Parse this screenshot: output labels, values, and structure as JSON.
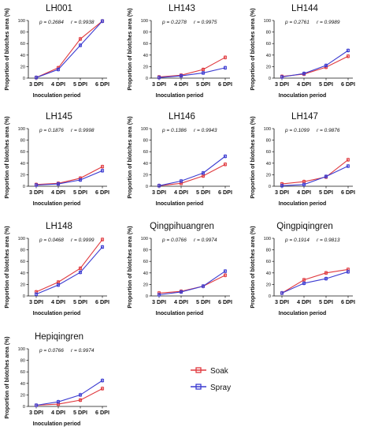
{
  "figure": {
    "legend": {
      "entries": [
        {
          "name": "Soak",
          "color": "#e0393e"
        },
        {
          "name": "Spray",
          "color": "#3b3bd1"
        }
      ]
    }
  },
  "chart_data": [
    {
      "type": "line",
      "title": "LH001",
      "stats": {
        "p": "p = 0.2684",
        "r": "r = 0.9938"
      },
      "categories": [
        "3 DPI",
        "4 DPI",
        "5 DPI",
        "6 DPI"
      ],
      "xlabel": "Inoculation period",
      "ylabel": "Proportion of blotches area (%)",
      "ylim": [
        0,
        100
      ],
      "yticks": [
        0,
        20,
        40,
        60,
        80,
        100
      ],
      "grid": false,
      "series": [
        {
          "name": "Soak",
          "color": "#e0393e",
          "values": [
            1,
            18,
            68,
            99
          ]
        },
        {
          "name": "Spray",
          "color": "#3b3bd1",
          "values": [
            1,
            15,
            57,
            99
          ]
        }
      ]
    },
    {
      "type": "line",
      "title": "LH143",
      "stats": {
        "p": "p = 0.2278",
        "r": "r = 0.9975"
      },
      "categories": [
        "3 DPI",
        "4 DPI",
        "5 DPI",
        "6 DPI"
      ],
      "xlabel": "Inoculation period",
      "ylabel": "Proportion of blotches area (%)",
      "ylim": [
        0,
        100
      ],
      "yticks": [
        0,
        20,
        40,
        60,
        80,
        100
      ],
      "grid": false,
      "series": [
        {
          "name": "Soak",
          "color": "#e0393e",
          "values": [
            2,
            5,
            15,
            36
          ]
        },
        {
          "name": "Spray",
          "color": "#3b3bd1",
          "values": [
            1,
            4,
            9,
            18
          ]
        }
      ]
    },
    {
      "type": "line",
      "title": "LH144",
      "stats": {
        "p": "p = 0.2761",
        "r": "r = 0.9989"
      },
      "categories": [
        "3 DPI",
        "4 DPI",
        "5 DPI",
        "6 DPI"
      ],
      "xlabel": "Inoculation period",
      "ylabel": "Proportion of blotches area (%)",
      "ylim": [
        0,
        100
      ],
      "yticks": [
        0,
        20,
        40,
        60,
        80,
        100
      ],
      "grid": false,
      "series": [
        {
          "name": "Soak",
          "color": "#e0393e",
          "values": [
            3,
            7,
            19,
            38
          ]
        },
        {
          "name": "Spray",
          "color": "#3b3bd1",
          "values": [
            2,
            8,
            22,
            48
          ]
        }
      ]
    },
    {
      "type": "line",
      "title": "LH145",
      "stats": {
        "p": "p = 0.1876",
        "r": "r = 0.9998"
      },
      "categories": [
        "3 DPI",
        "4 DPI",
        "5 DPI",
        "6 DPI"
      ],
      "xlabel": "Inoculation period",
      "ylabel": "Proportion of blotches area (%)",
      "ylim": [
        0,
        100
      ],
      "yticks": [
        0,
        20,
        40,
        60,
        80,
        100
      ],
      "grid": false,
      "series": [
        {
          "name": "Soak",
          "color": "#e0393e",
          "values": [
            3,
            5,
            14,
            34
          ]
        },
        {
          "name": "Spray",
          "color": "#3b3bd1",
          "values": [
            2,
            4,
            11,
            27
          ]
        }
      ]
    },
    {
      "type": "line",
      "title": "LH146",
      "stats": {
        "p": "p = 0.1386",
        "r": "r = 0.9943"
      },
      "categories": [
        "3 DPI",
        "4 DPI",
        "5 DPI",
        "6 DPI"
      ],
      "xlabel": "Inoculation period",
      "ylabel": "Proportion of blotches area (%)",
      "ylim": [
        0,
        100
      ],
      "yticks": [
        0,
        20,
        40,
        60,
        80,
        100
      ],
      "grid": false,
      "series": [
        {
          "name": "Soak",
          "color": "#e0393e",
          "values": [
            1,
            5,
            18,
            38
          ]
        },
        {
          "name": "Spray",
          "color": "#3b3bd1",
          "values": [
            1,
            9,
            23,
            52
          ]
        }
      ]
    },
    {
      "type": "line",
      "title": "LH147",
      "stats": {
        "p": "p = 0.1099",
        "r": "r = 0.9876"
      },
      "categories": [
        "3 DPI",
        "4 DPI",
        "5 DPI",
        "6 DPI"
      ],
      "xlabel": "Inoculation period",
      "ylabel": "Proportion of blotches area (%)",
      "ylim": [
        0,
        100
      ],
      "yticks": [
        0,
        20,
        40,
        60,
        80,
        100
      ],
      "grid": false,
      "series": [
        {
          "name": "Soak",
          "color": "#e0393e",
          "values": [
            4,
            8,
            16,
            46
          ]
        },
        {
          "name": "Spray",
          "color": "#3b3bd1",
          "values": [
            1,
            3,
            17,
            35
          ]
        }
      ]
    },
    {
      "type": "line",
      "title": "LH148",
      "stats": {
        "p": "p = 0.0468",
        "r": "r = 0.9999"
      },
      "categories": [
        "3 DPI",
        "4 DPI",
        "5 DPI",
        "6 DPI"
      ],
      "xlabel": "Inoculation period",
      "ylabel": "Proportion of blotches area (%)",
      "ylim": [
        0,
        100
      ],
      "yticks": [
        0,
        20,
        40,
        60,
        80,
        100
      ],
      "grid": false,
      "series": [
        {
          "name": "Soak",
          "color": "#e0393e",
          "values": [
            7,
            24,
            48,
            98
          ]
        },
        {
          "name": "Spray",
          "color": "#3b3bd1",
          "values": [
            3,
            19,
            41,
            85
          ]
        }
      ]
    },
    {
      "type": "line",
      "title": "Qingpihuangren",
      "stats": {
        "p": "p = 0.0766",
        "r": "r = 0.9974"
      },
      "categories": [
        "3 DPI",
        "4 DPI",
        "5 DPI",
        "6 DPI"
      ],
      "xlabel": "Inoculation period",
      "ylabel": "Proportion of blotches area (%)",
      "ylim": [
        0,
        100
      ],
      "yticks": [
        0,
        20,
        40,
        60,
        80,
        100
      ],
      "grid": false,
      "series": [
        {
          "name": "Soak",
          "color": "#e0393e",
          "values": [
            5,
            8,
            17,
            36
          ]
        },
        {
          "name": "Spray",
          "color": "#3b3bd1",
          "values": [
            2,
            7,
            17,
            43
          ]
        }
      ]
    },
    {
      "type": "line",
      "title": "Qingpiqingren",
      "stats": {
        "p": "p = 0.1914",
        "r": "r = 0.9813"
      },
      "categories": [
        "3 DPI",
        "4 DPI",
        "5 DPI",
        "6 DPI"
      ],
      "xlabel": "Inoculation period",
      "ylabel": "Proportion of blotches area (%)",
      "ylim": [
        0,
        100
      ],
      "yticks": [
        0,
        20,
        40,
        60,
        80,
        100
      ],
      "grid": false,
      "series": [
        {
          "name": "Soak",
          "color": "#e0393e",
          "values": [
            5,
            28,
            40,
            46
          ]
        },
        {
          "name": "Spray",
          "color": "#3b3bd1",
          "values": [
            5,
            22,
            30,
            42
          ]
        }
      ]
    },
    {
      "type": "line",
      "title": "Hepiqingren",
      "stats": {
        "p": "p = 0.0766",
        "r": "r = 0.9974"
      },
      "categories": [
        "3 DPI",
        "4 DPI",
        "5 DPI",
        "6 DPI"
      ],
      "xlabel": "Inoculation period",
      "ylabel": "Proportion of blotches area (%)",
      "ylim": [
        0,
        100
      ],
      "yticks": [
        0,
        20,
        40,
        60,
        80,
        100
      ],
      "grid": false,
      "series": [
        {
          "name": "Soak",
          "color": "#e0393e",
          "values": [
            2,
            4,
            11,
            31
          ]
        },
        {
          "name": "Spray",
          "color": "#3b3bd1",
          "values": [
            2,
            8,
            20,
            45
          ]
        }
      ]
    }
  ]
}
